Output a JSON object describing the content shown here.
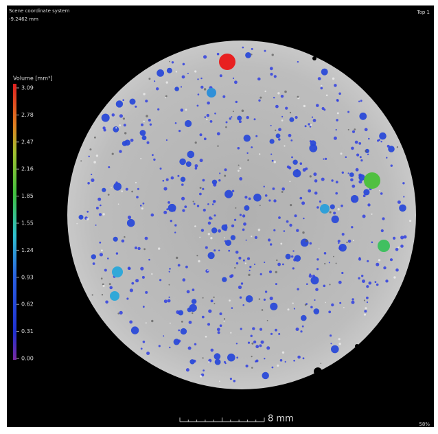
{
  "header": {
    "line1": "Scene coordinate system",
    "line2": "-9.2462 mm",
    "view": "Top 1"
  },
  "legend": {
    "title": "Volume [mm³]",
    "ticks": [
      "3.09",
      "2.78",
      "2.47",
      "2.16",
      "1.85",
      "1.55",
      "1.24",
      "0.93",
      "0.62",
      "0.31",
      "0.00"
    ]
  },
  "scale_bar": {
    "label": "8 mm"
  },
  "zoom": "58%"
}
